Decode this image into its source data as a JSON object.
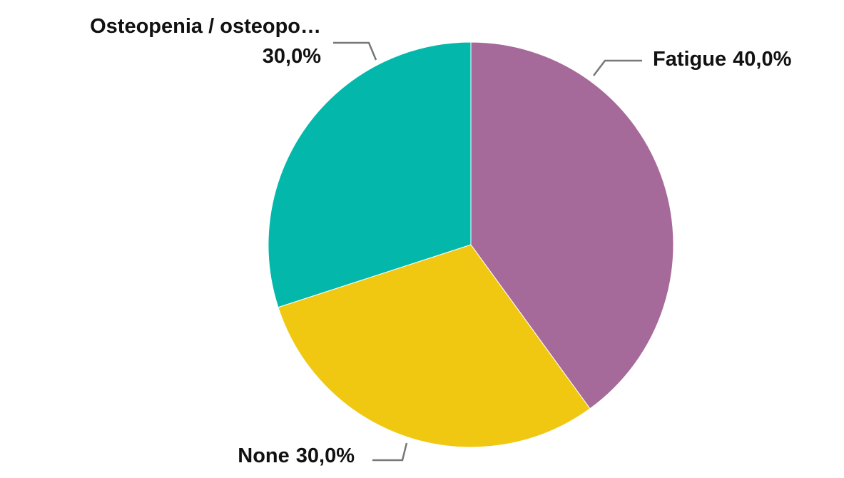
{
  "chart_data": {
    "type": "pie",
    "categories": [
      "Fatigue",
      "None",
      "Osteopenia / osteopo…"
    ],
    "values": [
      40,
      30,
      30
    ],
    "value_labels": [
      "40,0%",
      "30,0%",
      "30,0%"
    ],
    "colors": [
      "#a66a9a",
      "#f0c812",
      "#03b8ab"
    ]
  }
}
